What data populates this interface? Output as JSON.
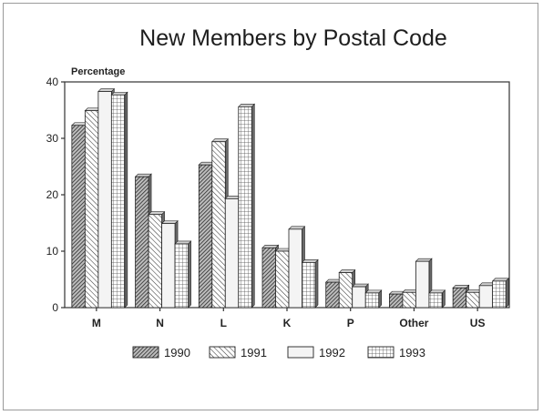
{
  "chart_data": {
    "type": "bar",
    "title": "New Members by Postal Code",
    "ylabel": "Percentage",
    "xlabel": "",
    "ylim": [
      0,
      40
    ],
    "yticks": [
      0,
      10,
      20,
      30,
      40
    ],
    "grid": false,
    "legend_position": "bottom",
    "categories": [
      "M",
      "N",
      "L",
      "K",
      "P",
      "Other",
      "US"
    ],
    "series": [
      {
        "name": "1990",
        "pattern": "dense-hatch",
        "values": [
          32.3,
          23.2,
          25.3,
          10.6,
          4.5,
          2.4,
          3.5
        ]
      },
      {
        "name": "1991",
        "pattern": "diagonal-hatch",
        "values": [
          34.9,
          16.5,
          29.4,
          10.0,
          6.2,
          2.7,
          2.7
        ]
      },
      {
        "name": "1992",
        "pattern": "light",
        "values": [
          38.3,
          14.9,
          19.3,
          13.9,
          3.7,
          8.2,
          3.9
        ]
      },
      {
        "name": "1993",
        "pattern": "grid",
        "values": [
          37.7,
          11.3,
          35.6,
          8.0,
          2.6,
          2.6,
          4.7
        ]
      }
    ]
  }
}
